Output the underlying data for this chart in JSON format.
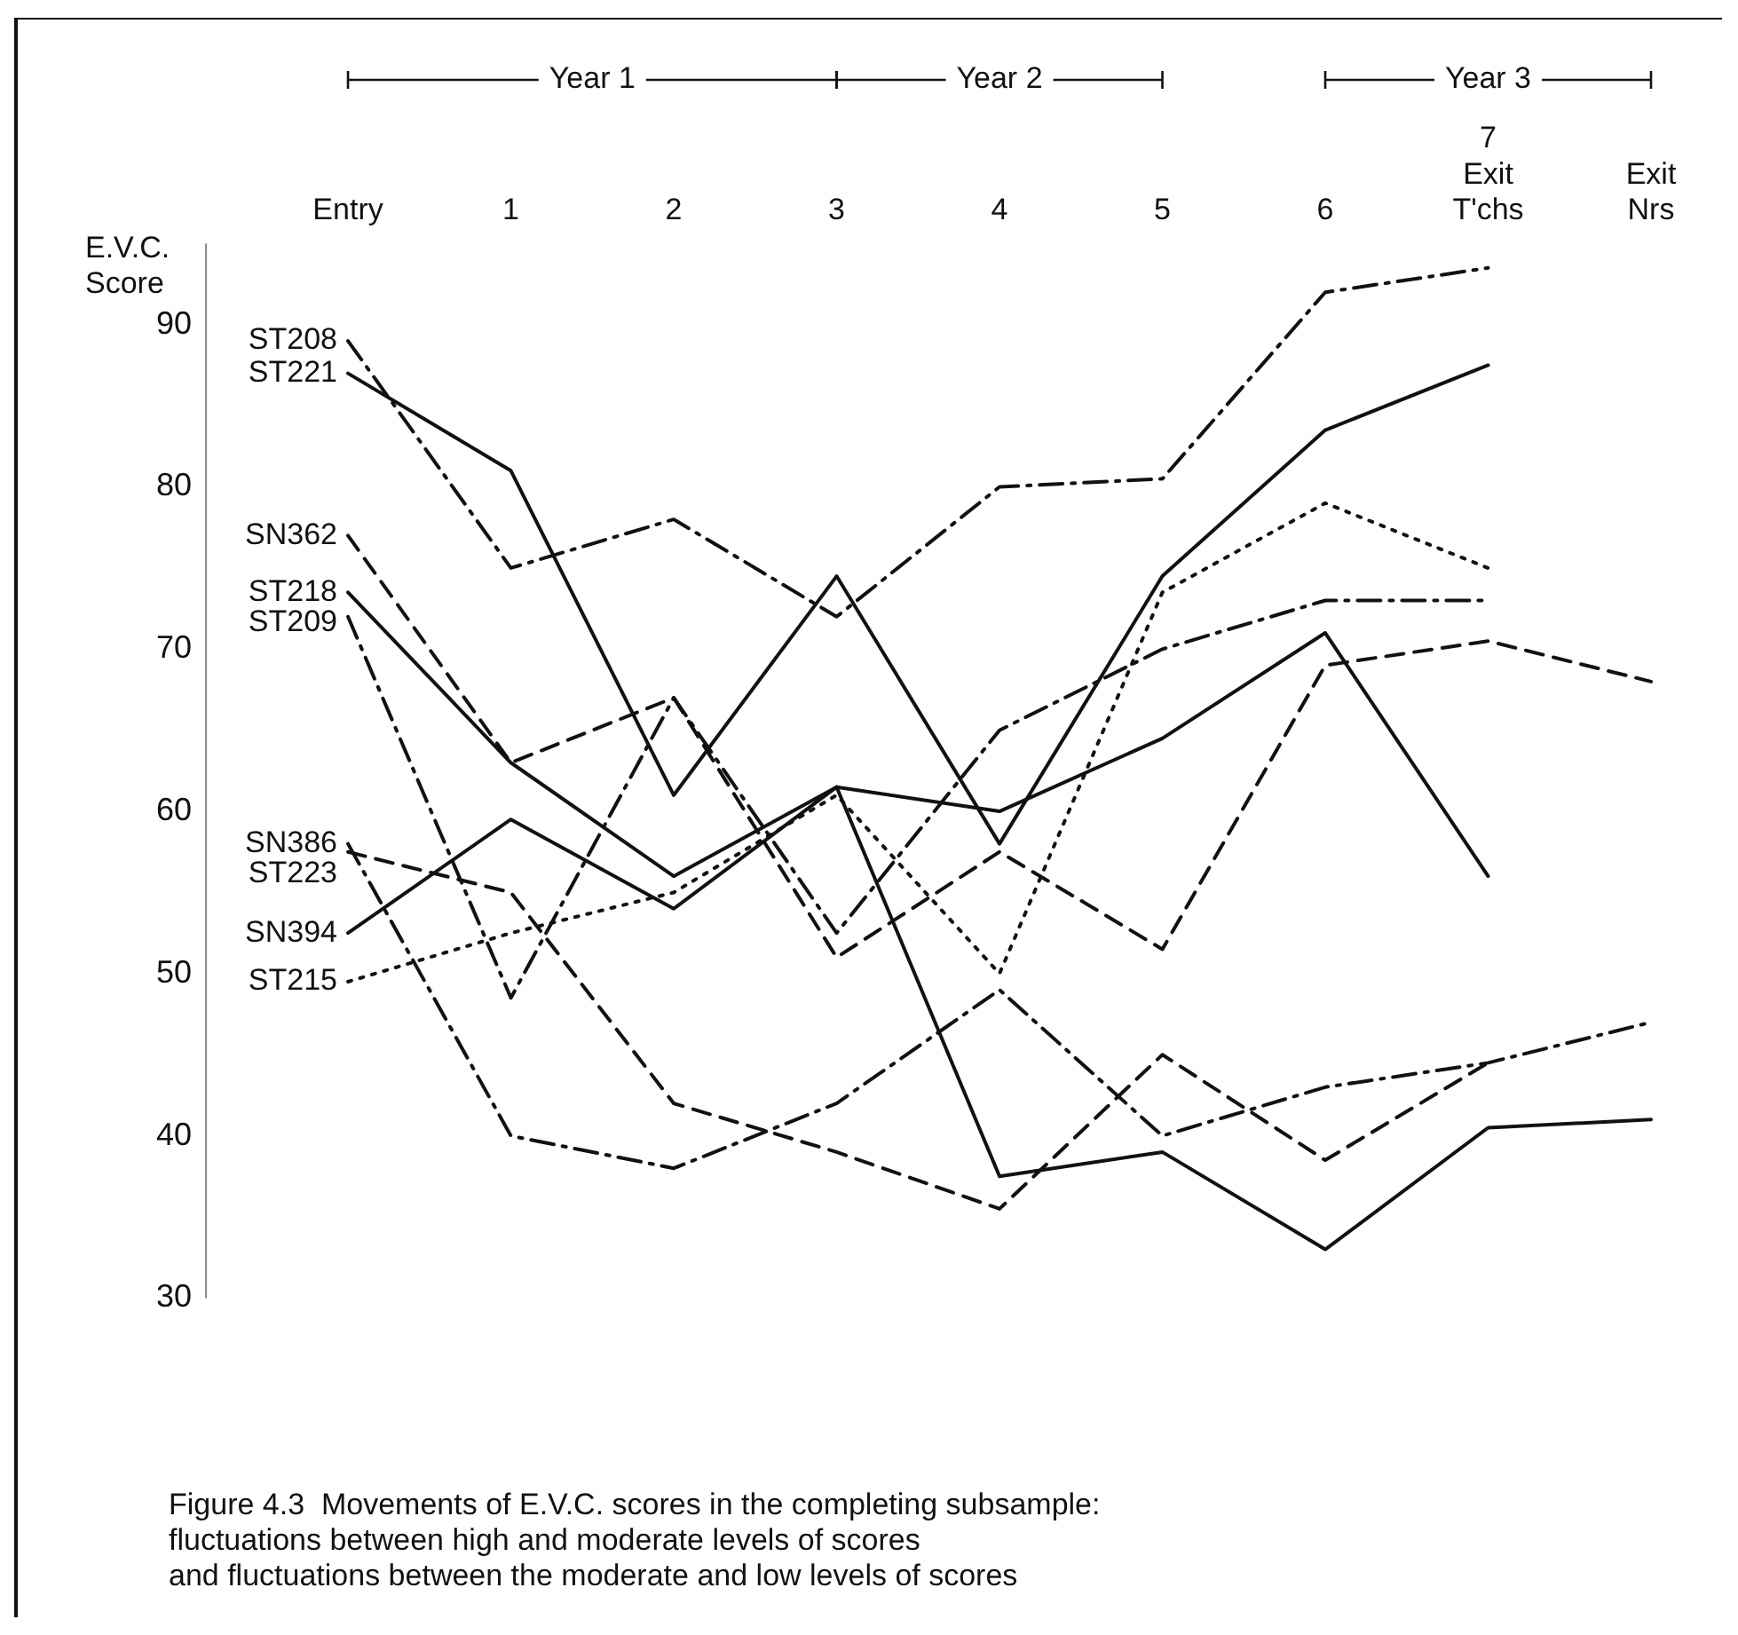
{
  "chart_data": {
    "type": "line",
    "ylabel": "E.V.C.\nScore",
    "categories": [
      "Entry",
      "1",
      "2",
      "3",
      "4",
      "5",
      "6",
      "7\nExit\nT'chs",
      "Exit\nNrs"
    ],
    "ylim": [
      30,
      95
    ],
    "yticks": [
      30,
      40,
      50,
      60,
      70,
      80,
      90
    ],
    "grid": false,
    "legend": false,
    "marker": "none",
    "series": [
      {
        "name": "ST208",
        "color": "#111111",
        "line_style": "dashdot",
        "values": [
          89,
          75,
          78,
          72,
          80,
          80.5,
          92,
          93.5,
          null
        ]
      },
      {
        "name": "ST221",
        "color": "#111111",
        "line_style": "solid",
        "values": [
          87,
          81,
          61,
          74.5,
          58,
          74.5,
          83.5,
          87.5,
          null
        ]
      },
      {
        "name": "SN362",
        "color": "#111111",
        "line_style": "dashed",
        "values": [
          77,
          63,
          67,
          51,
          57.5,
          51.5,
          69,
          70.5,
          68
        ]
      },
      {
        "name": "ST218",
        "color": "#111111",
        "line_style": "solid",
        "values": [
          73.5,
          63,
          56,
          61.5,
          60,
          64.5,
          71,
          56,
          null
        ]
      },
      {
        "name": "ST209",
        "color": "#111111",
        "line_style": "dashdot",
        "values": [
          72,
          48.5,
          67,
          52.5,
          65,
          70,
          73,
          73,
          null
        ]
      },
      {
        "name": "SN386",
        "color": "#111111",
        "line_style": "dashdot",
        "values": [
          58,
          40,
          38,
          42,
          49,
          40,
          43,
          44.5,
          47
        ]
      },
      {
        "name": "ST223",
        "color": "#111111",
        "line_style": "dashed",
        "values": [
          57.5,
          55,
          42,
          39,
          35.5,
          45,
          38.5,
          44.5,
          null
        ]
      },
      {
        "name": "SN394",
        "color": "#111111",
        "line_style": "solid",
        "values": [
          52.5,
          59.5,
          54,
          61.5,
          37.5,
          39,
          33,
          40.5,
          41
        ]
      },
      {
        "name": "ST215",
        "color": "#111111",
        "line_style": "dotted",
        "values": [
          49.5,
          52.5,
          55,
          61,
          50,
          73.5,
          79,
          75,
          null
        ]
      }
    ],
    "annotations": [
      "Year 1",
      "Year 2",
      "Year 3",
      "Figure 4.3  Movements of E.V.C. scores in the completing subsample:\nfluctuations between high and moderate levels of scores\nand fluctuations between the moderate and low levels of scores"
    ]
  }
}
